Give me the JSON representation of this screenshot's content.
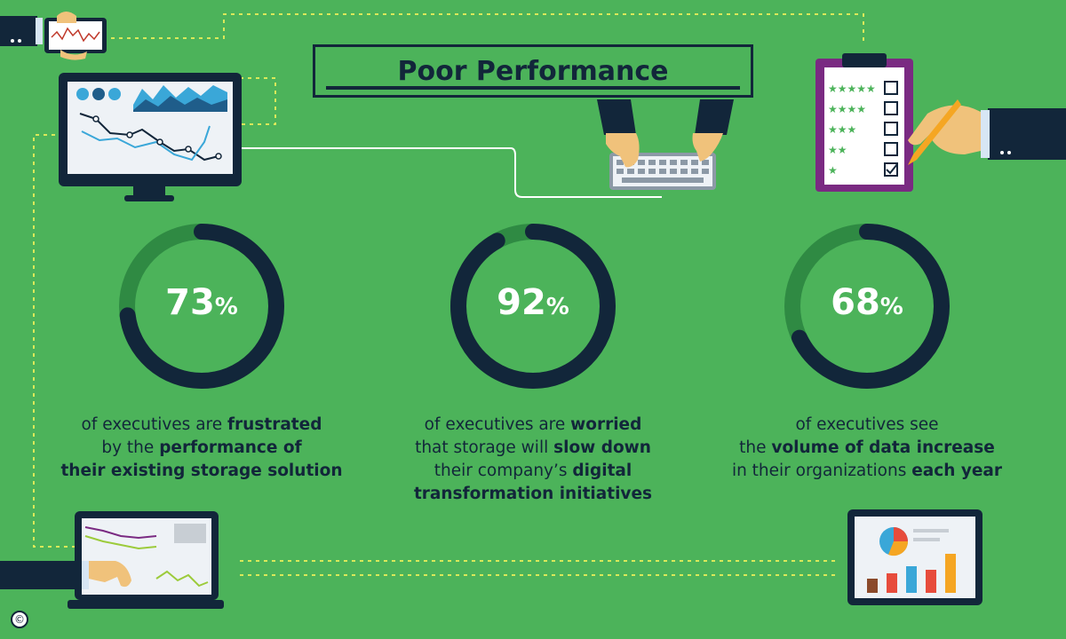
{
  "title": "Poor Performance",
  "chart_data": {
    "type": "donut",
    "stats": [
      {
        "value": 73,
        "unit": "%",
        "caption": [
          [
            {
              "t": "of executives are ",
              "b": false
            },
            {
              "t": "frustrated",
              "b": true
            }
          ],
          [
            {
              "t": "by the ",
              "b": false
            },
            {
              "t": "performance of",
              "b": true
            }
          ],
          [
            {
              "t": "their existing storage solution",
              "b": true
            }
          ]
        ]
      },
      {
        "value": 92,
        "unit": "%",
        "caption": [
          [
            {
              "t": "of executives are ",
              "b": false
            },
            {
              "t": "worried",
              "b": true
            }
          ],
          [
            {
              "t": "that storage will ",
              "b": false
            },
            {
              "t": "slow down",
              "b": true
            }
          ],
          [
            {
              "t": "their company’s ",
              "b": false
            },
            {
              "t": "digital",
              "b": true
            }
          ],
          [
            {
              "t": "transformation initiatives",
              "b": true
            }
          ]
        ]
      },
      {
        "value": 68,
        "unit": "%",
        "caption": [
          [
            {
              "t": "of executives see",
              "b": false
            }
          ],
          [
            {
              "t": "the ",
              "b": false
            },
            {
              "t": "volume of data increase",
              "b": true
            }
          ],
          [
            {
              "t": "in their organizations ",
              "b": false
            },
            {
              "t": "each year",
              "b": true
            }
          ]
        ]
      }
    ]
  },
  "icons": [
    "hand-phone-icon",
    "monitor-chart-icon",
    "keyboard-hands-icon",
    "clipboard-rating-icon",
    "laptop-hand-icon",
    "tablet-bar-chart-icon"
  ],
  "copyright_symbol": "©",
  "colors": {
    "background": "#4cb35a",
    "navy": "#12263a",
    "ring_track": "#2f8a43",
    "white": "#ffffff"
  }
}
